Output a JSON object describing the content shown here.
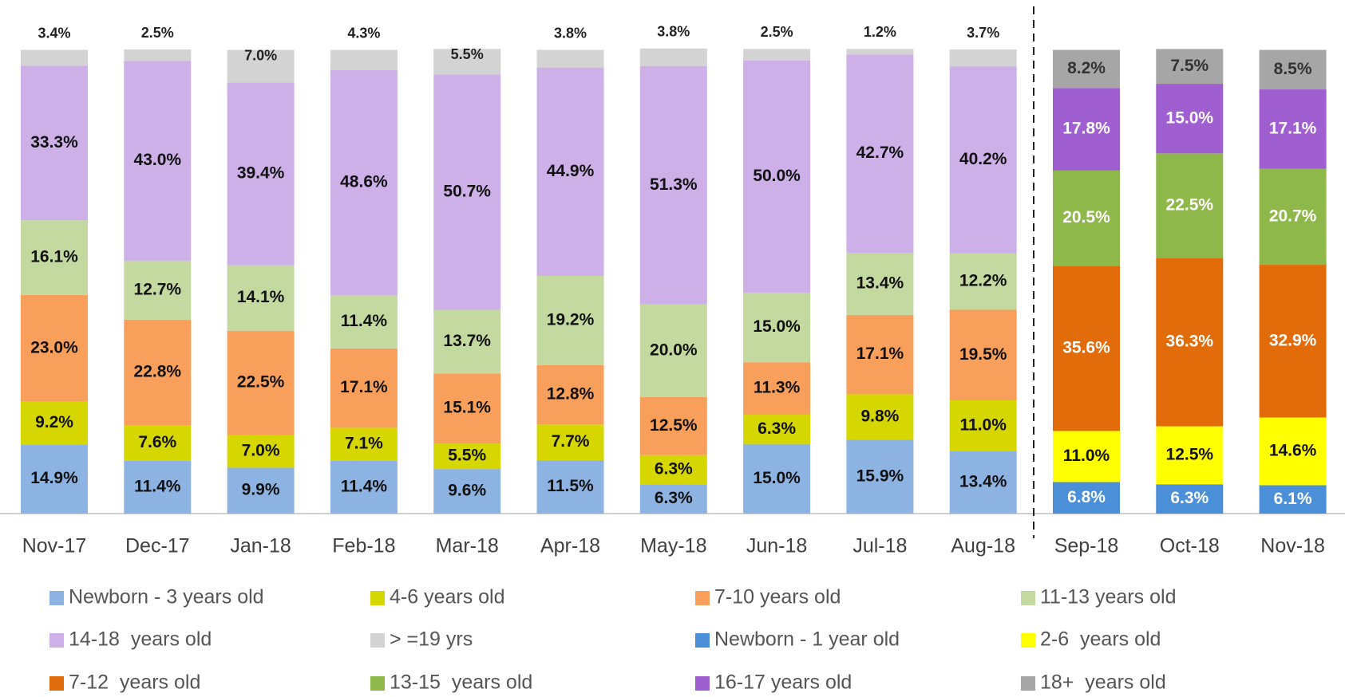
{
  "chart_data": {
    "type": "stacked_bar",
    "categories": [
      "Nov-17",
      "Dec-17",
      "Jan-18",
      "Feb-18",
      "Mar-18",
      "Apr-18",
      "May-18",
      "Jun-18",
      "Jul-18",
      "Aug-18",
      "Sep-18",
      "Oct-18",
      "Nov-18"
    ],
    "ylim": [
      0,
      100
    ],
    "series": [
      {
        "name": "Newborn - 3 years old",
        "color": "#8db3e2",
        "label_color": "#111111",
        "values": [
          14.9,
          11.4,
          9.9,
          11.4,
          9.6,
          11.5,
          6.3,
          15.0,
          15.9,
          13.4,
          null,
          null,
          null
        ],
        "value_labels": [
          "14.9%",
          "11.4%",
          "9.9%",
          "11.4%",
          "9.6%",
          "11.5%",
          "6.3%",
          "15.0%",
          "15.9%",
          "13.4%",
          null,
          null,
          null
        ]
      },
      {
        "name": "4-6 years old",
        "color": "#d6d600",
        "label_color": "#111111",
        "values": [
          9.2,
          7.6,
          7.0,
          7.1,
          5.5,
          7.7,
          6.3,
          6.3,
          9.8,
          11.0,
          null,
          null,
          null
        ],
        "value_labels": [
          "9.2%",
          "7.6%",
          "7.0%",
          "7.1%",
          "5.5%",
          "7.7%",
          "6.3%",
          "6.3%",
          "9.8%",
          "11.0%",
          null,
          null,
          null
        ]
      },
      {
        "name": "7-10 years old",
        "color": "#f79f5b",
        "label_color": "#111111",
        "values": [
          23.0,
          22.8,
          22.5,
          17.1,
          15.1,
          12.8,
          12.5,
          11.3,
          17.1,
          19.5,
          null,
          null,
          null
        ],
        "value_labels": [
          "23.0%",
          "22.8%",
          "22.5%",
          "17.1%",
          "15.1%",
          "12.8%",
          "12.5%",
          "11.3%",
          "17.1%",
          "19.5%",
          null,
          null,
          null
        ]
      },
      {
        "name": "11-13 years old",
        "color": "#c4d9a0",
        "label_color": "#111111",
        "values": [
          16.1,
          12.7,
          14.1,
          11.4,
          13.7,
          19.2,
          20.0,
          15.0,
          13.4,
          12.2,
          null,
          null,
          null
        ],
        "value_labels": [
          "16.1%",
          "12.7%",
          "14.1%",
          "11.4%",
          "13.7%",
          "19.2%",
          "20.0%",
          "15.0%",
          "13.4%",
          "12.2%",
          null,
          null,
          null
        ]
      },
      {
        "name": "14-18  years old",
        "color": "#cdb0e8",
        "label_color": "#111111",
        "values": [
          33.3,
          43.0,
          39.4,
          48.6,
          50.7,
          44.9,
          51.3,
          50.0,
          42.7,
          40.2,
          null,
          null,
          null
        ],
        "value_labels": [
          "33.3%",
          "43.0%",
          "39.4%",
          "48.6%",
          "50.7%",
          "44.9%",
          "51.3%",
          "50.0%",
          "42.7%",
          "40.2%",
          null,
          null,
          null
        ]
      },
      {
        "name": "> =19 yrs",
        "color": "#d3d3d3",
        "label_color": "#222222",
        "values": [
          3.4,
          2.5,
          7.0,
          4.3,
          5.5,
          3.8,
          3.8,
          2.5,
          1.2,
          3.7,
          null,
          null,
          null
        ],
        "value_labels": [
          "3.4%",
          "2.5%",
          "7.0%",
          "4.3%",
          "5.5%",
          "3.8%",
          "3.8%",
          "2.5%",
          "1.2%",
          "3.7%",
          null,
          null,
          null
        ]
      },
      {
        "name": "Newborn - 1 year old",
        "color": "#4a8fd8",
        "label_color": "#ffffff",
        "values": [
          null,
          null,
          null,
          null,
          null,
          null,
          null,
          null,
          null,
          null,
          6.8,
          6.3,
          6.1
        ],
        "value_labels": [
          null,
          null,
          null,
          null,
          null,
          null,
          null,
          null,
          null,
          null,
          "6.8%",
          "6.3%",
          "6.1%"
        ]
      },
      {
        "name": "2-6  years old",
        "color": "#ffff00",
        "label_color": "#111111",
        "values": [
          null,
          null,
          null,
          null,
          null,
          null,
          null,
          null,
          null,
          null,
          11.0,
          12.5,
          14.6
        ],
        "value_labels": [
          null,
          null,
          null,
          null,
          null,
          null,
          null,
          null,
          null,
          null,
          "11.0%",
          "12.5%",
          "14.6%"
        ]
      },
      {
        "name": "7-12  years old",
        "color": "#e36c0a",
        "label_color": "#ffffff",
        "values": [
          null,
          null,
          null,
          null,
          null,
          null,
          null,
          null,
          null,
          null,
          35.6,
          36.3,
          32.9
        ],
        "value_labels": [
          null,
          null,
          null,
          null,
          null,
          null,
          null,
          null,
          null,
          null,
          "35.6%",
          "36.3%",
          "32.9%"
        ]
      },
      {
        "name": "13-15  years old",
        "color": "#8fb84a",
        "label_color": "#ffffff",
        "values": [
          null,
          null,
          null,
          null,
          null,
          null,
          null,
          null,
          null,
          null,
          20.5,
          22.5,
          20.7
        ],
        "value_labels": [
          null,
          null,
          null,
          null,
          null,
          null,
          null,
          null,
          null,
          null,
          "20.5%",
          "22.5%",
          "20.7%"
        ]
      },
      {
        "name": "16-17 years old",
        "color": "#a05fd1",
        "label_color": "#ffffff",
        "values": [
          null,
          null,
          null,
          null,
          null,
          null,
          null,
          null,
          null,
          null,
          17.8,
          15.0,
          17.1
        ],
        "value_labels": [
          null,
          null,
          null,
          null,
          null,
          null,
          null,
          null,
          null,
          null,
          "17.8%",
          "15.0%",
          "17.1%"
        ]
      },
      {
        "name": "18+  years old",
        "color": "#a6a6a6",
        "label_color": "#333333",
        "values": [
          null,
          null,
          null,
          null,
          null,
          null,
          null,
          null,
          null,
          null,
          8.2,
          7.5,
          8.5
        ],
        "value_labels": [
          null,
          null,
          null,
          null,
          null,
          null,
          null,
          null,
          null,
          null,
          "8.2%",
          "7.5%",
          "8.5%"
        ]
      }
    ]
  }
}
